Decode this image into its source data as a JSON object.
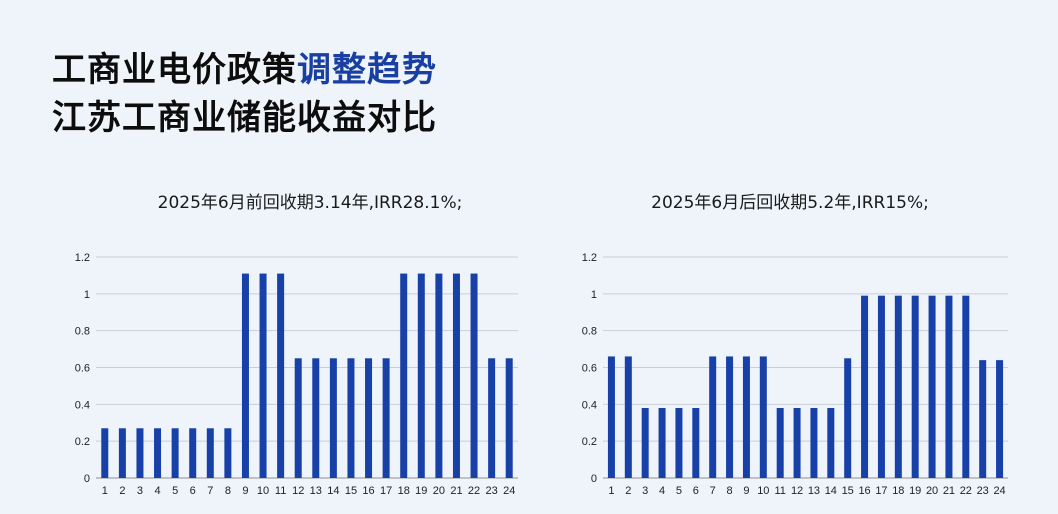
{
  "header": {
    "line1_black": "工商业电价政策",
    "line1_blue": "调整趋势",
    "line2": "江苏工商业储能收益对比"
  },
  "colors": {
    "bar": "#1740a8",
    "grid": "#c9ced6",
    "highlight": "#1a3fa3"
  },
  "chart_data": [
    {
      "type": "bar",
      "title": "2025年6月前回收期3.14年,IRR28.1%;",
      "categories": [
        "1",
        "2",
        "3",
        "4",
        "5",
        "6",
        "7",
        "8",
        "9",
        "10",
        "11",
        "12",
        "13",
        "14",
        "15",
        "16",
        "17",
        "18",
        "19",
        "20",
        "21",
        "22",
        "23",
        "24"
      ],
      "values": [
        0.27,
        0.27,
        0.27,
        0.27,
        0.27,
        0.27,
        0.27,
        0.27,
        1.11,
        1.11,
        1.11,
        0.65,
        0.65,
        0.65,
        0.65,
        0.65,
        0.65,
        1.11,
        1.11,
        1.11,
        1.11,
        1.11,
        0.65,
        0.65
      ],
      "ylim": [
        0,
        1.2
      ],
      "yticks": [
        "0",
        "0.2",
        "0.4",
        "0.6",
        "0.8",
        "1",
        "1.2"
      ],
      "grid": true,
      "xlabel": "",
      "ylabel": ""
    },
    {
      "type": "bar",
      "title": "2025年6月后回收期5.2年,IRR15%;",
      "categories": [
        "1",
        "2",
        "3",
        "4",
        "5",
        "6",
        "7",
        "8",
        "9",
        "10",
        "11",
        "12",
        "13",
        "14",
        "15",
        "16",
        "17",
        "18",
        "19",
        "20",
        "21",
        "22",
        "23",
        "24"
      ],
      "values": [
        0.66,
        0.66,
        0.38,
        0.38,
        0.38,
        0.38,
        0.66,
        0.66,
        0.66,
        0.66,
        0.38,
        0.38,
        0.38,
        0.38,
        0.65,
        0.99,
        0.99,
        0.99,
        0.99,
        0.99,
        0.99,
        0.99,
        0.64,
        0.64
      ],
      "ylim": [
        0,
        1.2
      ],
      "yticks": [
        "0",
        "0.2",
        "0.4",
        "0.6",
        "0.8",
        "1",
        "1.2"
      ],
      "grid": true,
      "xlabel": "",
      "ylabel": ""
    }
  ]
}
